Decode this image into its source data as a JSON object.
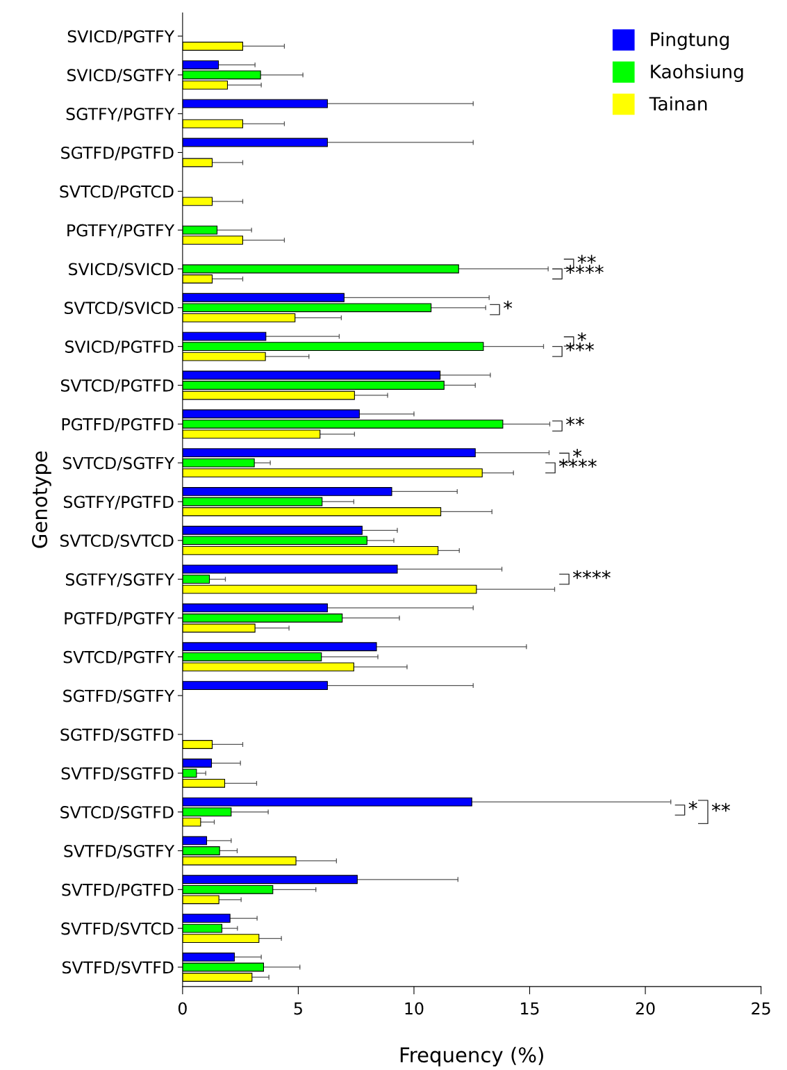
{
  "chart_data": {
    "type": "bar",
    "orientation": "horizontal",
    "xlabel": "Frequency (%)",
    "ylabel": "Genotype",
    "categories": [
      "SVICD/PGTFY",
      "SVICD/SGTFY",
      "SGTFY/PGTFY",
      "SGTFD/PGTFD",
      "SVTCD/PGTCD",
      "PGTFY/PGTFY",
      "SVICD/SVICD",
      "SVTCD/SVICD",
      "SVICD/PGTFD",
      "SVTCD/PGTFD",
      "PGTFD/PGTFD",
      "SVTCD/SGTFY",
      "SGTFY/PGTFD",
      "SVTCD/SVTCD",
      "SGTFY/SGTFY",
      "PGTFD/PGTFY",
      "SVTCD/PGTFY",
      "SGTFD/SGTFY",
      "SGTFD/SGTFD",
      "SVTFD/SGTFD",
      "SVTCD/SGTFD",
      "SVTFD/SGTFY",
      "SVTFD/PGTFD",
      "SVTFD/SVTCD",
      "SVTFD/SVTFD"
    ],
    "series": [
      {
        "name": "Pingtung",
        "color": "#0000ff",
        "values": [
          null,
          1.55,
          6.26,
          6.26,
          null,
          null,
          null,
          6.98,
          3.6,
          11.13,
          7.64,
          12.65,
          9.04,
          7.76,
          9.28,
          6.26,
          8.38,
          6.26,
          null,
          1.25,
          12.5,
          1.04,
          7.55,
          2.05,
          2.24
        ],
        "errors": [
          null,
          [
            1.55,
            3.13
          ],
          [
            6.26,
            12.56
          ],
          [
            6.26,
            12.56
          ],
          null,
          null,
          null,
          [
            6.98,
            13.25
          ],
          [
            3.6,
            6.77
          ],
          [
            11.13,
            13.3
          ],
          [
            7.64,
            10.0
          ],
          [
            12.65,
            15.84
          ],
          [
            9.04,
            11.87
          ],
          [
            7.76,
            9.28
          ],
          [
            9.28,
            13.8
          ],
          [
            6.26,
            12.56
          ],
          [
            8.38,
            14.86
          ],
          [
            6.26,
            12.56
          ],
          null,
          [
            1.25,
            2.5
          ],
          [
            12.5,
            21.1
          ],
          [
            1.04,
            2.1
          ],
          [
            7.55,
            11.9
          ],
          [
            2.05,
            3.22
          ],
          [
            2.24,
            3.4
          ]
        ]
      },
      {
        "name": "Kaohsiung",
        "color": "#00ff00",
        "values": [
          null,
          3.37,
          null,
          null,
          null,
          1.49,
          11.93,
          10.74,
          13.0,
          11.3,
          13.84,
          3.1,
          6.03,
          7.97,
          1.16,
          6.9,
          6.0,
          null,
          null,
          0.6,
          2.1,
          1.6,
          3.9,
          1.7,
          3.5
        ],
        "errors": [
          null,
          [
            3.37,
            5.2
          ],
          null,
          null,
          null,
          [
            1.49,
            2.98
          ],
          [
            11.93,
            15.8
          ],
          [
            10.74,
            13.1
          ],
          [
            13.0,
            15.6
          ],
          [
            11.3,
            12.65
          ],
          [
            13.84,
            15.87
          ],
          [
            3.1,
            3.79
          ],
          [
            6.03,
            7.4
          ],
          [
            7.97,
            9.13
          ],
          [
            1.16,
            1.85
          ],
          [
            6.9,
            9.37
          ],
          [
            6.0,
            8.44
          ],
          null,
          null,
          [
            0.6,
            1.0
          ],
          [
            2.1,
            3.7
          ],
          [
            1.6,
            2.36
          ],
          [
            3.9,
            5.76
          ],
          [
            1.7,
            2.37
          ],
          [
            3.5,
            5.07
          ]
        ]
      },
      {
        "name": "Tainan",
        "color": "#ffff00",
        "values": [
          2.6,
          1.94,
          2.6,
          1.28,
          1.28,
          2.6,
          1.28,
          4.86,
          3.58,
          7.43,
          5.94,
          12.95,
          11.16,
          11.04,
          12.7,
          3.13,
          7.4,
          null,
          1.28,
          1.82,
          0.78,
          4.9,
          1.57,
          3.3,
          3.0
        ],
        "errors": [
          [
            2.6,
            4.4
          ],
          [
            1.94,
            3.4
          ],
          [
            2.6,
            4.4
          ],
          [
            1.28,
            2.6
          ],
          [
            1.28,
            2.6
          ],
          [
            2.6,
            4.4
          ],
          [
            1.28,
            2.6
          ],
          [
            4.86,
            6.86
          ],
          [
            3.58,
            5.46
          ],
          [
            7.43,
            8.86
          ],
          [
            5.94,
            7.43
          ],
          [
            12.95,
            14.3
          ],
          [
            11.16,
            13.37
          ],
          [
            11.04,
            11.96
          ],
          [
            12.7,
            16.08
          ],
          [
            3.13,
            4.6
          ],
          [
            7.4,
            9.7
          ],
          null,
          [
            1.28,
            2.6
          ],
          [
            1.82,
            3.2
          ],
          [
            0.78,
            1.37
          ],
          [
            4.9,
            6.65
          ],
          [
            1.57,
            2.53
          ],
          [
            3.3,
            4.27
          ],
          [
            3.0,
            3.73
          ]
        ]
      }
    ],
    "xlim": [
      0,
      25
    ],
    "xticks": [
      0,
      5,
      10,
      15,
      20,
      25
    ],
    "grid": false,
    "legend": "top right",
    "annotations": [
      "**",
      "****",
      "*",
      "*",
      "***",
      "**",
      "*",
      "****",
      "****",
      "*",
      "**"
    ]
  }
}
